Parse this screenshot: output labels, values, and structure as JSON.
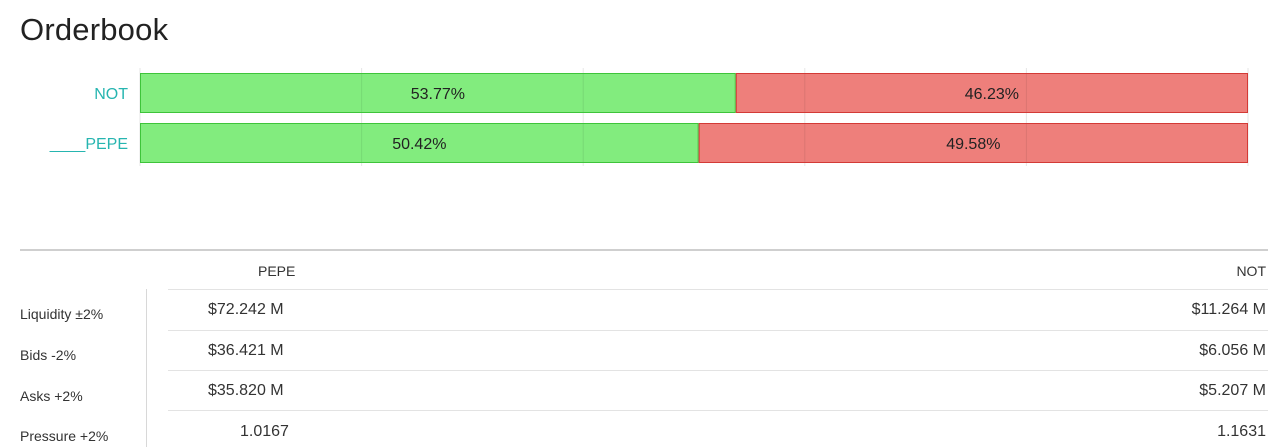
{
  "title": "Orderbook",
  "colors": {
    "bid": "#82ec7e",
    "bid_border": "#3ec43a",
    "ask": "#ee7f7b",
    "ask_border": "#d33a36",
    "label": "#26b5b0"
  },
  "chart_data": {
    "type": "bar",
    "orientation": "horizontal",
    "stacked": true,
    "percent": true,
    "categories": [
      "NOT",
      "____PEPE"
    ],
    "series": [
      {
        "values": [
          53.77,
          50.42
        ],
        "labels": [
          "53.77%",
          "50.42%"
        ]
      },
      {
        "values": [
          46.23,
          49.58
        ],
        "labels": [
          "46.23%",
          "49.58%"
        ]
      }
    ],
    "xlim": [
      0,
      100
    ],
    "grid": true
  },
  "table": {
    "columns": [
      "PEPE",
      "NOT"
    ],
    "rows": [
      {
        "label": "Liquidity ±2%",
        "values": [
          "$72.242 M",
          "$11.264 M"
        ]
      },
      {
        "label": "Bids -2%",
        "values": [
          "$36.421 M",
          "$6.056 M"
        ]
      },
      {
        "label": "Asks +2%",
        "values": [
          "$35.820 M",
          "$5.207 M"
        ]
      },
      {
        "label": "Pressure +2%",
        "values": [
          "1.0167",
          "1.1631"
        ]
      }
    ]
  }
}
